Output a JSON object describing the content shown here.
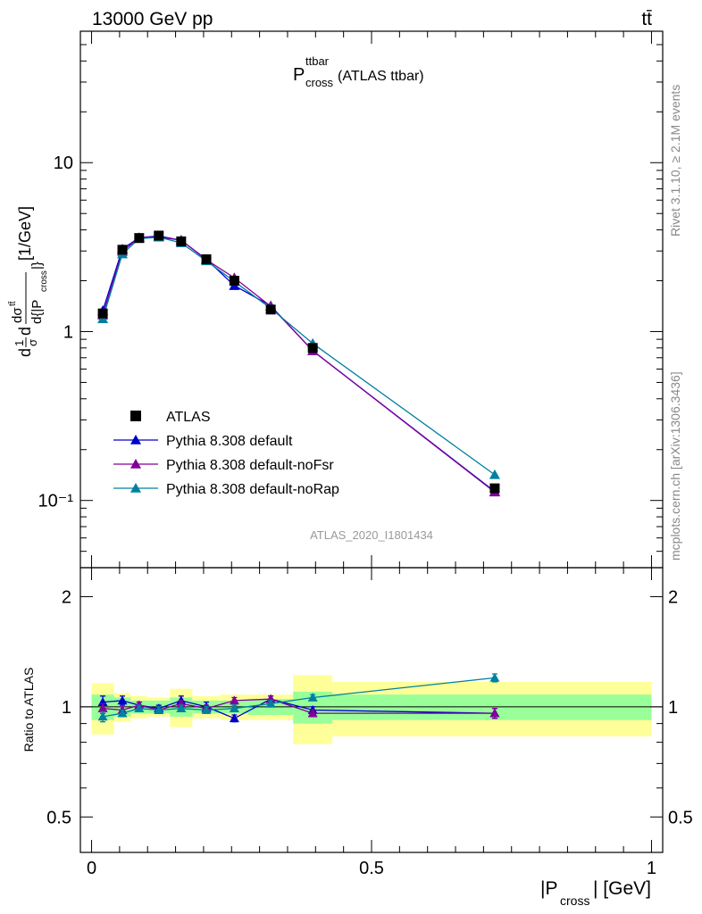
{
  "header": {
    "energy_label": "13000 GeV pp",
    "process_label": "tt̄"
  },
  "side": {
    "rivet_label": "Rivet 3.1.10, ≥ 2.1M events",
    "mcplots_label": "mcplots.cern.ch [arXiv:1306.3436]"
  },
  "plot_title": {
    "main": "P",
    "sup": "ttbar",
    "sub": "cross",
    "suffix": " (ATLAS ttbar)"
  },
  "watermark": "ATLAS_2020_I1801434",
  "colors": {
    "data": "#000000",
    "default": "#0000cc",
    "noFsr": "#800099",
    "noRap": "#0080a0",
    "band_inner": "#99ff99",
    "band_outer": "#ffff99"
  },
  "chart_data": [
    {
      "type": "line",
      "scale_y": "log",
      "xlim": [
        -0.02,
        1.02
      ],
      "ylim": [
        0.04,
        60
      ],
      "ylabel": "d1/σ dσ^tt̄/d{|P_cross|} [1/GeV]",
      "ytick_labels": [
        "10⁻¹",
        "1",
        "10"
      ],
      "yticks": [
        0.1,
        1,
        10
      ],
      "legend_position": "lower-left",
      "x": [
        0.02,
        0.055,
        0.085,
        0.12,
        0.16,
        0.205,
        0.255,
        0.32,
        0.395,
        0.72
      ],
      "series": [
        {
          "name": "ATLAS",
          "style": "data",
          "values": [
            1.28,
            3.05,
            3.58,
            3.7,
            3.42,
            2.68,
            2.0,
            1.35,
            0.8,
            0.118
          ]
        },
        {
          "name": "Pythia 8.308 default",
          "style": "default",
          "values": [
            1.33,
            3.08,
            3.6,
            3.68,
            3.47,
            2.68,
            1.87,
            1.42,
            0.77,
            0.113
          ]
        },
        {
          "name": "Pythia 8.308 default-noFsr",
          "style": "noFsr",
          "values": [
            1.25,
            2.98,
            3.6,
            3.62,
            3.48,
            2.66,
            2.08,
            1.41,
            0.77,
            0.112
          ]
        },
        {
          "name": "Pythia 8.308 default-noRap",
          "style": "noRap",
          "values": [
            1.19,
            2.88,
            3.55,
            3.62,
            3.35,
            2.62,
            1.98,
            1.37,
            0.85,
            0.142
          ]
        }
      ]
    },
    {
      "type": "line",
      "scale_y": "log",
      "xlim": [
        -0.02,
        1.02
      ],
      "ylim": [
        0.4,
        2.4
      ],
      "xlabel": "|P_cross| [GeV]",
      "ylabel": "Ratio to ATLAS",
      "xtick_labels": [
        "0",
        "0.5",
        "1"
      ],
      "xticks": [
        0,
        0.5,
        1
      ],
      "ytick_labels": [
        "0.5",
        "1",
        "2"
      ],
      "yticks": [
        0.5,
        1,
        2
      ],
      "bands": [
        {
          "x0": 0.0,
          "x1": 0.04,
          "inner": [
            0.92,
            1.08
          ],
          "outer": [
            0.84,
            1.16
          ]
        },
        {
          "x0": 0.04,
          "x1": 0.07,
          "inner": [
            0.94,
            1.06
          ],
          "outer": [
            0.91,
            1.09
          ]
        },
        {
          "x0": 0.07,
          "x1": 0.1,
          "inner": [
            0.96,
            1.04
          ],
          "outer": [
            0.93,
            1.07
          ]
        },
        {
          "x0": 0.1,
          "x1": 0.14,
          "inner": [
            0.96,
            1.04
          ],
          "outer": [
            0.94,
            1.06
          ]
        },
        {
          "x0": 0.14,
          "x1": 0.18,
          "inner": [
            0.94,
            1.06
          ],
          "outer": [
            0.88,
            1.12
          ]
        },
        {
          "x0": 0.18,
          "x1": 0.23,
          "inner": [
            0.96,
            1.04
          ],
          "outer": [
            0.93,
            1.07
          ]
        },
        {
          "x0": 0.23,
          "x1": 0.28,
          "inner": [
            0.96,
            1.04
          ],
          "outer": [
            0.92,
            1.08
          ]
        },
        {
          "x0": 0.28,
          "x1": 0.36,
          "inner": [
            0.95,
            1.05
          ],
          "outer": [
            0.92,
            1.08
          ]
        },
        {
          "x0": 0.36,
          "x1": 0.43,
          "inner": [
            0.9,
            1.1
          ],
          "outer": [
            0.79,
            1.22
          ]
        },
        {
          "x0": 0.43,
          "x1": 1.0,
          "inner": [
            0.92,
            1.08
          ],
          "outer": [
            0.83,
            1.17
          ]
        }
      ],
      "x": [
        0.02,
        0.055,
        0.085,
        0.12,
        0.16,
        0.205,
        0.255,
        0.32,
        0.395,
        0.72
      ],
      "series": [
        {
          "name": "Pythia 8.308 default",
          "style": "default",
          "values": [
            1.03,
            1.04,
            1.01,
            0.99,
            1.04,
            1.0,
            0.93,
            1.05,
            0.98,
            0.96
          ],
          "errors": [
            0.04,
            0.03,
            0.02,
            0.02,
            0.03,
            0.03,
            0.02,
            0.02,
            0.02,
            0.03
          ]
        },
        {
          "name": "Pythia 8.308 default-noFsr",
          "style": "noFsr",
          "values": [
            0.99,
            0.98,
            1.01,
            0.98,
            1.02,
            0.99,
            1.04,
            1.05,
            0.96,
            0.96
          ],
          "errors": [
            0.03,
            0.02,
            0.02,
            0.02,
            0.02,
            0.02,
            0.02,
            0.02,
            0.02,
            0.03
          ]
        },
        {
          "name": "Pythia 8.308 default-noRap",
          "style": "noRap",
          "values": [
            0.94,
            0.96,
            0.99,
            0.98,
            0.99,
            0.98,
            0.99,
            1.02,
            1.06,
            1.2
          ],
          "errors": [
            0.03,
            0.02,
            0.02,
            0.02,
            0.02,
            0.02,
            0.02,
            0.02,
            0.02,
            0.03
          ]
        }
      ]
    }
  ]
}
